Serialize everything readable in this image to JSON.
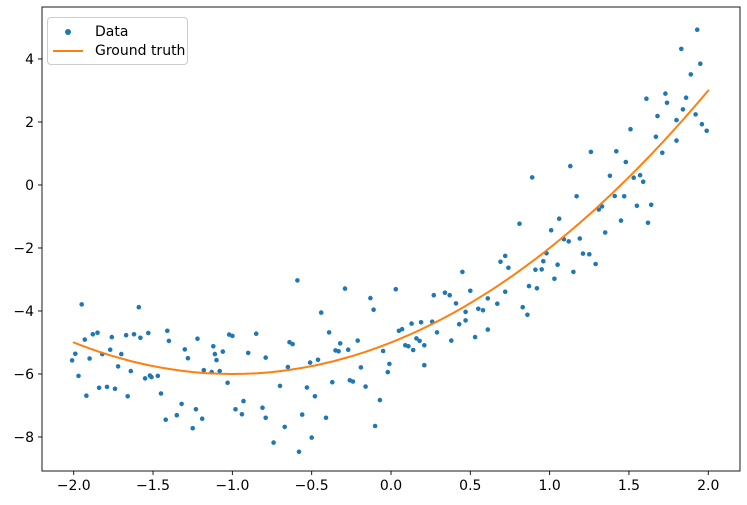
{
  "chart_data": {
    "type": "scatter",
    "title": "",
    "xlabel": "",
    "ylabel": "",
    "grid": false,
    "legend_position": "upper left",
    "legend": [
      {
        "label": "Data",
        "marker": "dot",
        "color": "#1f77b4"
      },
      {
        "label": "Ground truth",
        "marker": "line",
        "color": "#ff7f0e"
      }
    ],
    "colors": {
      "points": "#1f77b4",
      "curve": "#ff7f0e",
      "axis": "#000000",
      "background": "#ffffff"
    },
    "xlim": [
      -2.2,
      2.2
    ],
    "ylim": [
      -9.08,
      5.65
    ],
    "x_ticks": [
      -2.0,
      -1.5,
      -1.0,
      -0.5,
      0.0,
      0.5,
      1.0,
      1.5,
      2.0
    ],
    "x_tick_labels": [
      "−2.0",
      "−1.5",
      "−1.0",
      "−0.5",
      "0.0",
      "0.5",
      "1.0",
      "1.5",
      "2.0"
    ],
    "y_ticks": [
      -8,
      -6,
      -4,
      -2,
      0,
      2,
      4
    ],
    "y_tick_labels": [
      "−8",
      "−6",
      "−4",
      "−2",
      "0",
      "2",
      "4"
    ],
    "ground_truth": {
      "formula": "y = x^2 + 2x - 5",
      "a": 1,
      "b": 2,
      "c": -5,
      "x_min": -2.0,
      "x_max": 2.0
    },
    "series": [
      {
        "name": "Data",
        "points": [
          [
            1.93,
            4.93
          ],
          [
            1.83,
            4.32
          ],
          [
            1.95,
            3.85
          ],
          [
            1.89,
            3.51
          ],
          [
            1.61,
            2.74
          ],
          [
            1.73,
            2.9
          ],
          [
            1.74,
            2.61
          ],
          [
            1.86,
            2.77
          ],
          [
            1.92,
            2.24
          ],
          [
            1.68,
            2.19
          ],
          [
            1.8,
            2.06
          ],
          [
            1.84,
            2.4
          ],
          [
            1.96,
            1.93
          ],
          [
            1.99,
            1.72
          ],
          [
            1.51,
            1.77
          ],
          [
            1.67,
            1.53
          ],
          [
            1.8,
            1.41
          ],
          [
            1.26,
            1.05
          ],
          [
            1.42,
            1.07
          ],
          [
            1.71,
            1.02
          ],
          [
            1.48,
            0.73
          ],
          [
            1.13,
            0.6
          ],
          [
            0.89,
            0.24
          ],
          [
            1.38,
            0.29
          ],
          [
            1.53,
            0.23
          ],
          [
            1.57,
            0.31
          ],
          [
            1.59,
            0.1
          ],
          [
            1.17,
            -0.36
          ],
          [
            1.41,
            -0.35
          ],
          [
            1.47,
            -0.36
          ],
          [
            1.31,
            -0.78
          ],
          [
            1.33,
            -0.68
          ],
          [
            1.55,
            -0.66
          ],
          [
            1.64,
            -0.63
          ],
          [
            1.06,
            -1.07
          ],
          [
            1.45,
            -1.13
          ],
          [
            1.62,
            -1.2
          ],
          [
            0.81,
            -1.23
          ],
          [
            1.01,
            -1.44
          ],
          [
            1.35,
            -1.51
          ],
          [
            1.09,
            -1.72
          ],
          [
            1.12,
            -1.79
          ],
          [
            1.19,
            -1.7
          ],
          [
            1.21,
            -2.18
          ],
          [
            1.25,
            -2.2
          ],
          [
            0.98,
            -2.17
          ],
          [
            0.96,
            -2.42
          ],
          [
            1.05,
            -2.53
          ],
          [
            1.29,
            -2.51
          ],
          [
            0.91,
            -2.69
          ],
          [
            0.95,
            -2.68
          ],
          [
            0.74,
            -2.63
          ],
          [
            1.15,
            -2.76
          ],
          [
            1.03,
            -2.98
          ],
          [
            0.87,
            -3.21
          ],
          [
            0.92,
            -3.28
          ],
          [
            0.83,
            -3.88
          ],
          [
            0.86,
            -4.12
          ],
          [
            -0.59,
            -3.03
          ],
          [
            -0.29,
            -3.29
          ],
          [
            -0.13,
            -3.59
          ],
          [
            -0.11,
            -3.96
          ],
          [
            -0.44,
            -4.05
          ],
          [
            0.03,
            -3.31
          ],
          [
            0.27,
            -3.5
          ],
          [
            0.34,
            -3.42
          ],
          [
            0.37,
            -3.5
          ],
          [
            0.41,
            -3.76
          ],
          [
            0.45,
            -2.76
          ],
          [
            0.47,
            -4.03
          ],
          [
            0.5,
            -3.36
          ],
          [
            0.55,
            -3.93
          ],
          [
            0.58,
            -3.98
          ],
          [
            0.61,
            -3.6
          ],
          [
            0.69,
            -2.44
          ],
          [
            0.72,
            -2.25
          ],
          [
            0.67,
            -3.77
          ],
          [
            0.72,
            -3.39
          ],
          [
            -1.95,
            -3.79
          ],
          [
            -1.59,
            -3.88
          ],
          [
            -1.93,
            -4.91
          ],
          [
            -1.88,
            -4.74
          ],
          [
            -1.85,
            -4.69
          ],
          [
            -1.76,
            -4.83
          ],
          [
            -1.67,
            -4.77
          ],
          [
            -1.62,
            -4.74
          ],
          [
            -1.58,
            -4.85
          ],
          [
            -1.53,
            -4.7
          ],
          [
            -1.41,
            -4.63
          ],
          [
            -1.4,
            -4.95
          ],
          [
            -1.22,
            -4.88
          ],
          [
            -1.02,
            -4.75
          ],
          [
            -1.0,
            -4.79
          ],
          [
            -0.85,
            -4.72
          ],
          [
            -1.99,
            -5.36
          ],
          [
            -2.01,
            -5.57
          ],
          [
            -1.9,
            -5.51
          ],
          [
            -1.82,
            -5.37
          ],
          [
            -1.77,
            -5.23
          ],
          [
            -1.7,
            -5.37
          ],
          [
            -1.3,
            -5.22
          ],
          [
            -1.28,
            -5.5
          ],
          [
            -1.12,
            -5.12
          ],
          [
            -1.11,
            -5.37
          ],
          [
            -1.06,
            -5.29
          ],
          [
            -1.1,
            -5.56
          ],
          [
            -0.9,
            -5.33
          ],
          [
            -0.79,
            -5.48
          ],
          [
            -1.97,
            -6.06
          ],
          [
            -1.72,
            -5.76
          ],
          [
            -1.64,
            -5.91
          ],
          [
            -1.55,
            -6.14
          ],
          [
            -1.52,
            -6.05
          ],
          [
            -1.51,
            -6.1
          ],
          [
            -1.47,
            -6.06
          ],
          [
            -1.18,
            -5.88
          ],
          [
            -1.13,
            -5.94
          ],
          [
            -1.08,
            -5.91
          ],
          [
            -1.03,
            -6.28
          ],
          [
            -1.92,
            -6.69
          ],
          [
            -1.84,
            -6.44
          ],
          [
            -1.79,
            -6.41
          ],
          [
            -1.74,
            -6.47
          ],
          [
            -1.66,
            -6.71
          ],
          [
            -1.45,
            -6.62
          ],
          [
            -1.32,
            -6.95
          ],
          [
            -1.23,
            -7.12
          ],
          [
            -1.42,
            -7.45
          ],
          [
            -1.35,
            -7.31
          ],
          [
            -1.25,
            -7.72
          ],
          [
            -1.19,
            -7.42
          ],
          [
            -0.98,
            -7.12
          ],
          [
            -0.94,
            -7.28
          ],
          [
            -0.93,
            -6.86
          ],
          [
            -0.81,
            -7.07
          ],
          [
            -0.79,
            -7.39
          ],
          [
            -0.74,
            -8.18
          ],
          [
            -0.39,
            -4.68
          ],
          [
            0.05,
            -4.63
          ],
          [
            0.07,
            -4.58
          ],
          [
            0.13,
            -4.4
          ],
          [
            0.19,
            -4.36
          ],
          [
            0.26,
            -4.34
          ],
          [
            0.29,
            -4.68
          ],
          [
            0.43,
            -4.42
          ],
          [
            0.47,
            -4.3
          ],
          [
            0.61,
            -4.59
          ],
          [
            0.53,
            -4.83
          ],
          [
            0.38,
            -4.94
          ],
          [
            0.16,
            -4.87
          ],
          [
            0.18,
            -4.95
          ],
          [
            0.09,
            -5.09
          ],
          [
            0.11,
            -5.12
          ],
          [
            0.14,
            -5.24
          ],
          [
            0.21,
            -5.09
          ],
          [
            -0.64,
            -4.99
          ],
          [
            -0.62,
            -5.05
          ],
          [
            -0.32,
            -5.03
          ],
          [
            -0.21,
            -4.94
          ],
          [
            -0.35,
            -5.25
          ],
          [
            -0.33,
            -5.28
          ],
          [
            -0.27,
            -5.23
          ],
          [
            -0.05,
            -5.27
          ],
          [
            -0.46,
            -5.55
          ],
          [
            -0.51,
            -5.64
          ],
          [
            -0.65,
            -5.78
          ],
          [
            -0.19,
            -5.79
          ],
          [
            -0.01,
            -5.68
          ],
          [
            -0.02,
            -5.94
          ],
          [
            0.21,
            -5.72
          ],
          [
            -0.37,
            -6.26
          ],
          [
            -0.26,
            -6.2
          ],
          [
            -0.24,
            -6.24
          ],
          [
            -0.16,
            -6.4
          ],
          [
            -0.53,
            -6.43
          ],
          [
            -0.7,
            -6.38
          ],
          [
            -0.48,
            -6.71
          ],
          [
            -0.07,
            -6.83
          ],
          [
            -0.56,
            -7.29
          ],
          [
            -0.41,
            -7.39
          ],
          [
            -0.1,
            -7.65
          ],
          [
            -0.5,
            -8.02
          ],
          [
            -0.67,
            -7.68
          ],
          [
            -0.58,
            -8.47
          ]
        ]
      }
    ]
  }
}
